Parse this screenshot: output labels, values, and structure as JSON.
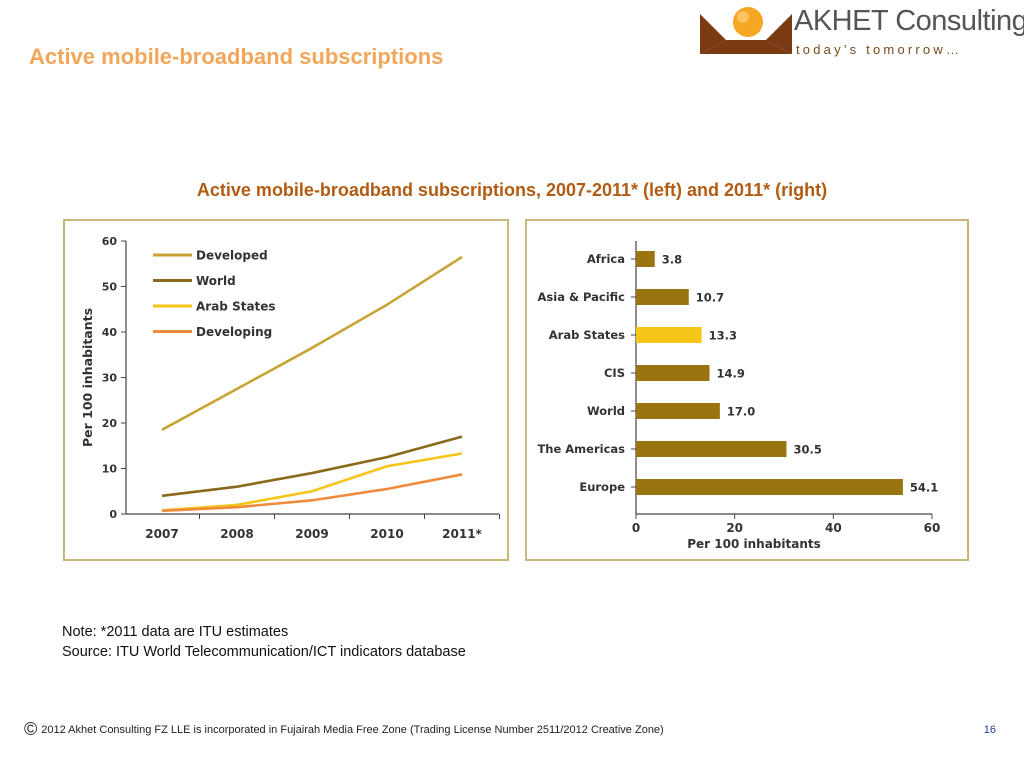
{
  "slide": {
    "title": "Active mobile-broadband subscriptions",
    "chart_heading": "Active mobile-broadband subscriptions, 2007-2011* (left) and 2011* (right)",
    "note": "Note: *2011 data are ITU estimates",
    "source": "Source: ITU World Telecommunication/ICT indicators database",
    "footer_symbol": "©",
    "footer": "2012 Akhet Consulting FZ LLE is incorporated in Fujairah Media Free Zone (Trading License Number 2511/2012 Creative Zone)",
    "page_number": "16"
  },
  "logo": {
    "brand": "AKHET",
    "brand_suffix": "Consulting",
    "tagline": "today’s tomorrow…",
    "colors": {
      "sun": "#f5a623",
      "pyramid": "#7a3b12"
    }
  },
  "chart_data": [
    {
      "type": "line",
      "title": "",
      "x": [
        "2007",
        "2008",
        "2009",
        "2010",
        "2011*"
      ],
      "xlabel": "",
      "ylabel": "Per 100 inhabitants",
      "ylim": [
        0,
        60
      ],
      "yticks": [
        "0",
        "10",
        "20",
        "30",
        "40",
        "50",
        "60"
      ],
      "grid": false,
      "legend_position": "top-left",
      "series": [
        {
          "name": "Developed",
          "color": "#c8a434",
          "values": [
            18.5,
            27.5,
            36.5,
            46,
            56.5
          ]
        },
        {
          "name": "World",
          "color": "#8a6a1a",
          "values": [
            4,
            6,
            9,
            12.5,
            17
          ]
        },
        {
          "name": "Arab States",
          "color": "#f5c518",
          "values": [
            0.8,
            2,
            5,
            10.5,
            13.3
          ]
        },
        {
          "name": "Developing",
          "color": "#f08a3c",
          "values": [
            0.7,
            1.5,
            3,
            5.5,
            8.7
          ]
        }
      ]
    },
    {
      "type": "bar",
      "orientation": "horizontal",
      "title": "",
      "categories": [
        "Africa",
        "Asia & Pacific",
        "Arab States",
        "CIS",
        "World",
        "The Americas",
        "Europe"
      ],
      "values": [
        3.8,
        10.7,
        13.3,
        14.9,
        17.0,
        30.5,
        54.1
      ],
      "value_labels": [
        "3.8",
        "10.7",
        "13.3",
        "14.9",
        "17.0",
        "30.5",
        "54.1"
      ],
      "xlabel": "Per 100 inhabitants",
      "xlim": [
        0,
        60
      ],
      "xticks": [
        "0",
        "20",
        "40",
        "60"
      ],
      "grid": false,
      "bar_color": "#9a7410",
      "highlight_category": "Arab States",
      "highlight_color": "#f5c518"
    }
  ]
}
